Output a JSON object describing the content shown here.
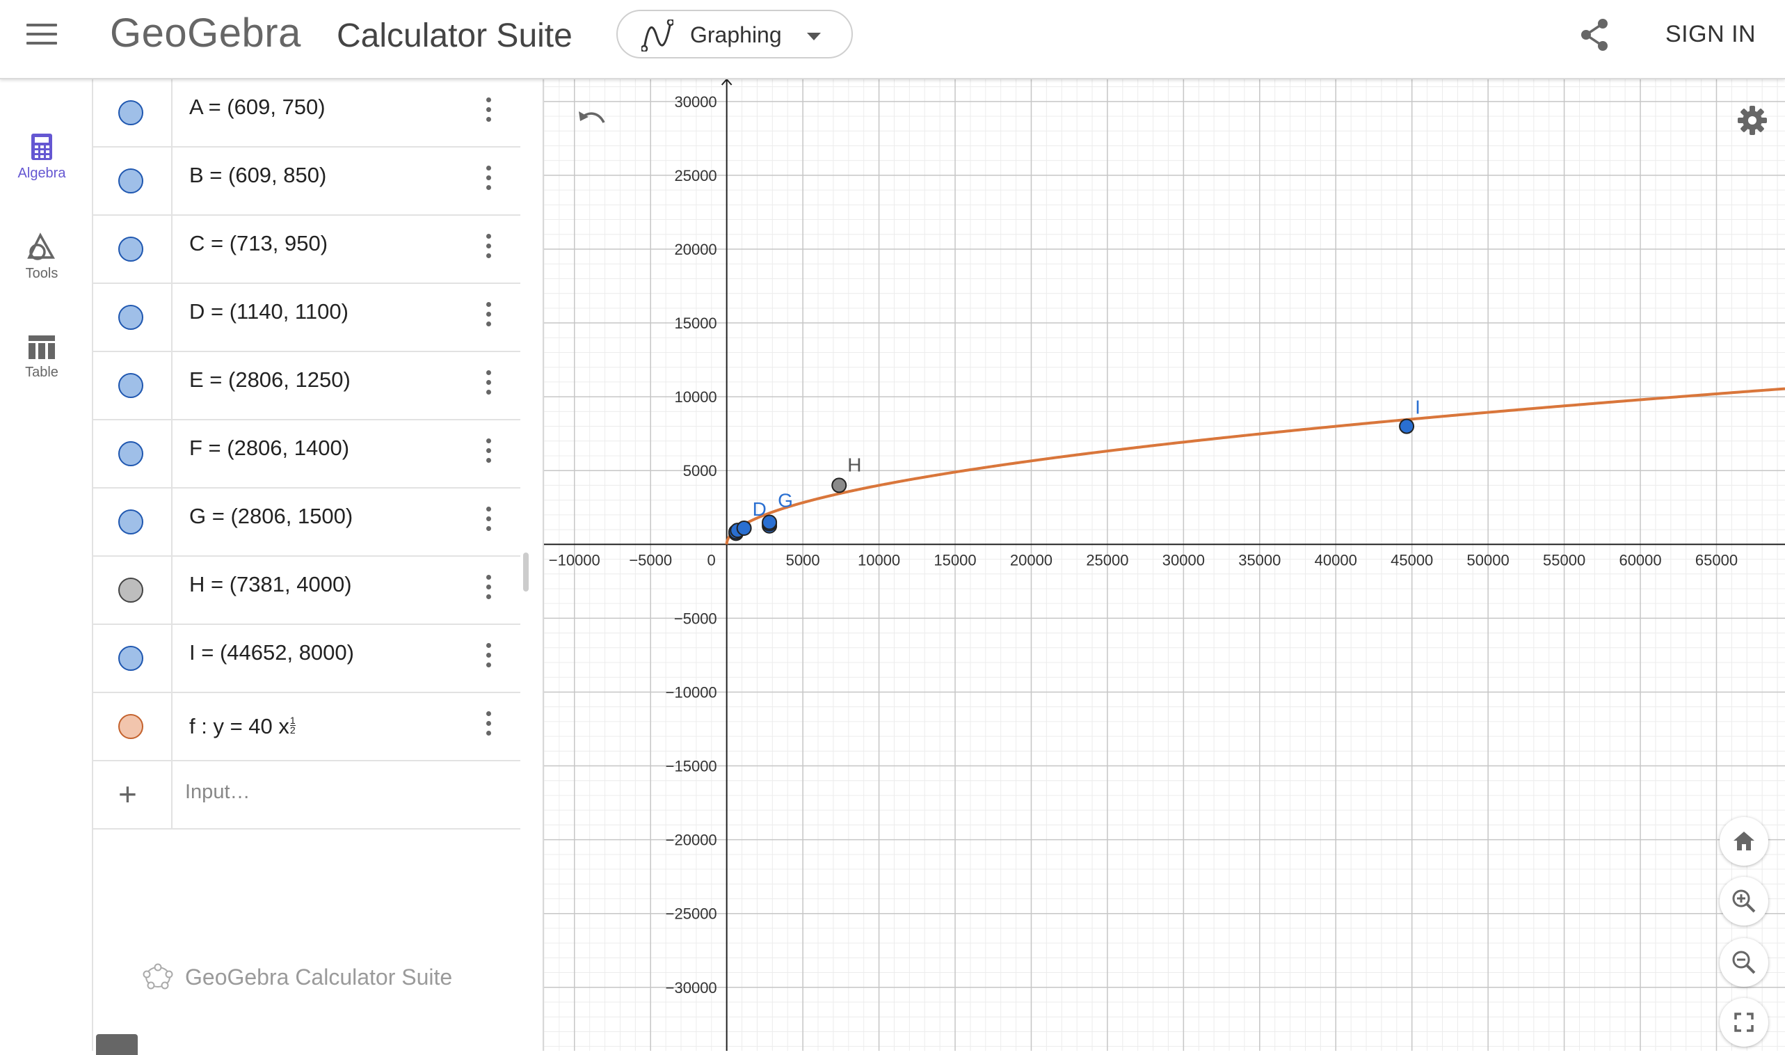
{
  "header": {
    "logo": "GeoGebra",
    "title": "Calculator Suite",
    "app_picker": "Graphing",
    "sign_in": "SIGN IN"
  },
  "sidebar": {
    "items": [
      {
        "label": "Algebra",
        "icon": "calculator-icon",
        "active": true
      },
      {
        "label": "Tools",
        "icon": "tools-shapes-icon",
        "active": false
      },
      {
        "label": "Table",
        "icon": "table-icon",
        "active": false
      }
    ]
  },
  "algebra": {
    "rows": [
      {
        "expr": "A = (609, 750)",
        "color": "#9fbfe8"
      },
      {
        "expr": "B = (609, 850)",
        "color": "#9fbfe8"
      },
      {
        "expr": "C = (713, 950)",
        "color": "#9fbfe8"
      },
      {
        "expr": "D = (1140, 1100)",
        "color": "#9fbfe8"
      },
      {
        "expr": "E = (2806, 1250)",
        "color": "#9fbfe8"
      },
      {
        "expr": "F = (2806, 1400)",
        "color": "#9fbfe8"
      },
      {
        "expr": "G = (2806, 1500)",
        "color": "#9fbfe8"
      },
      {
        "expr": "H = (7381, 4000)",
        "color": "#bdbdbd"
      },
      {
        "expr": "I = (44652, 8000)",
        "color": "#9fbfe8"
      }
    ],
    "function": {
      "prefix": "f :  y = 40 x",
      "exp_num": "1",
      "exp_den": "2",
      "color": "#f2c5ad"
    },
    "input_placeholder": "Input…",
    "footer": "GeoGebra Calculator Suite"
  },
  "graph": {
    "x_ticks": [
      "−10000",
      "−5000",
      "0",
      "5000",
      "10000",
      "15000",
      "20000",
      "25000",
      "30000",
      "35000",
      "40000",
      "45000",
      "50000",
      "55000",
      "60000",
      "65000"
    ],
    "y_ticks": [
      "30000",
      "25000",
      "20000",
      "15000",
      "10000",
      "5000",
      "−5000",
      "−10000",
      "−15000",
      "−20000",
      "−25000",
      "−30000"
    ],
    "curve_color": "#d9763b",
    "point_color": "#2a6fd1",
    "gray_point_color": "#8a8a8a"
  },
  "chart_data": {
    "type": "scatter",
    "title": "",
    "xlabel": "",
    "ylabel": "",
    "xlim": [
      -12000,
      69500
    ],
    "ylim": [
      -34300,
      31500
    ],
    "grid": true,
    "points": [
      {
        "name": "A",
        "x": 609,
        "y": 750
      },
      {
        "name": "B",
        "x": 609,
        "y": 850
      },
      {
        "name": "C",
        "x": 713,
        "y": 950
      },
      {
        "name": "D",
        "x": 1140,
        "y": 1100
      },
      {
        "name": "E",
        "x": 2806,
        "y": 1250
      },
      {
        "name": "F",
        "x": 2806,
        "y": 1400
      },
      {
        "name": "G",
        "x": 2806,
        "y": 1500
      },
      {
        "name": "H",
        "x": 7381,
        "y": 4000
      },
      {
        "name": "I",
        "x": 44652,
        "y": 8000
      }
    ],
    "function": {
      "name": "f",
      "expression": "y = 40 x^(1/2)",
      "coefficient": 40,
      "power": 0.5
    }
  }
}
